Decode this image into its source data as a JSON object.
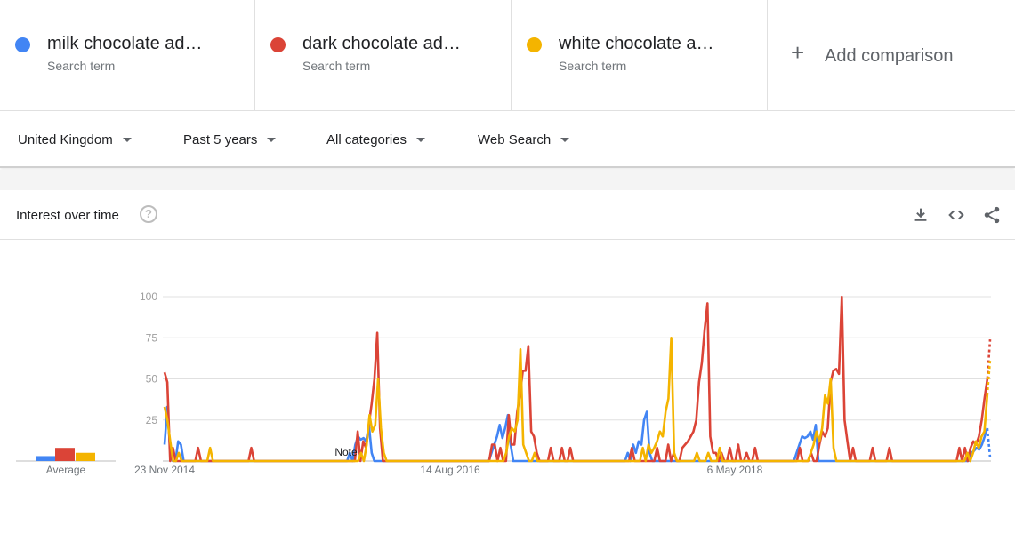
{
  "terms": [
    {
      "label": "milk chocolate ad…",
      "sub": "Search term",
      "color": "#4285f4"
    },
    {
      "label": "dark chocolate ad…",
      "sub": "Search term",
      "color": "#db4437"
    },
    {
      "label": "white chocolate a…",
      "sub": "Search term",
      "color": "#f4b400"
    }
  ],
  "add_comparison": {
    "icon": "+",
    "label": "Add comparison"
  },
  "filters": {
    "region": "United Kingdom",
    "time": "Past 5 years",
    "category": "All categories",
    "property": "Web Search"
  },
  "card": {
    "title": "Interest over time",
    "help": "?",
    "icons": [
      "download-icon",
      "embed-code-icon",
      "share-icon"
    ]
  },
  "chart_data": {
    "type": "line",
    "ylim": [
      0,
      100
    ],
    "yticks": [
      "100",
      "75",
      "50",
      "25"
    ],
    "x_labels": [
      "23 Nov 2014",
      "14 Aug 2016",
      "6 May 2018"
    ],
    "average_label": "Average",
    "note_label": "Note",
    "x_start": "2014-11-23",
    "x_step_weeks": 1,
    "averages": [
      3,
      8,
      5
    ],
    "partial_last_point": true,
    "series": [
      {
        "name": "milk chocolate ad…",
        "color": "#4285f4",
        "values": [
          10,
          33,
          8,
          0,
          0,
          12,
          10,
          0,
          0,
          0,
          0,
          0,
          0,
          0,
          0,
          0,
          0,
          0,
          0,
          0,
          0,
          0,
          0,
          0,
          0,
          0,
          0,
          0,
          0,
          0,
          0,
          0,
          0,
          0,
          0,
          0,
          0,
          0,
          0,
          0,
          0,
          0,
          0,
          0,
          0,
          0,
          0,
          0,
          0,
          0,
          0,
          0,
          0,
          0,
          0,
          0,
          0,
          0,
          0,
          0,
          0,
          0,
          0,
          0,
          0,
          0,
          0,
          0,
          5,
          0,
          10,
          15,
          13,
          14,
          12,
          22,
          5,
          0,
          0,
          0,
          0,
          0,
          0,
          0,
          0,
          0,
          0,
          0,
          0,
          0,
          0,
          0,
          0,
          0,
          0,
          0,
          0,
          0,
          0,
          0,
          0,
          0,
          0,
          0,
          0,
          0,
          0,
          0,
          0,
          0,
          0,
          0,
          0,
          0,
          0,
          0,
          0,
          0,
          0,
          0,
          5,
          10,
          15,
          22,
          14,
          20,
          28,
          10,
          0,
          0,
          0,
          0,
          0,
          0,
          0,
          0,
          0,
          0,
          0,
          0,
          0,
          0,
          0,
          0,
          0,
          0,
          0,
          0,
          0,
          0,
          0,
          0,
          0,
          0,
          0,
          0,
          0,
          0,
          0,
          0,
          0,
          0,
          0,
          0,
          0,
          0,
          0,
          0,
          0,
          0,
          5,
          0,
          10,
          5,
          12,
          10,
          25,
          30,
          5,
          0,
          0,
          0,
          0,
          0,
          0,
          0,
          0,
          0,
          0,
          0,
          0,
          0,
          0,
          0,
          0,
          0,
          0,
          0,
          0,
          0,
          0,
          0,
          0,
          0,
          0,
          0,
          0,
          0,
          0,
          0,
          0,
          0,
          0,
          0,
          0,
          0,
          0,
          0,
          0,
          0,
          0,
          0,
          0,
          0,
          0,
          0,
          0,
          0,
          0,
          0,
          0,
          0,
          5,
          10,
          15,
          14,
          15,
          18,
          13,
          22,
          0,
          0,
          0,
          0,
          0,
          0,
          0,
          0,
          0,
          0,
          0,
          0,
          0,
          0,
          0,
          0,
          0,
          0,
          0,
          0,
          0,
          0,
          0,
          0,
          0,
          0,
          0,
          0,
          0,
          0,
          0,
          0,
          0,
          0,
          0,
          0,
          0,
          0,
          0,
          0,
          0,
          0,
          0,
          0,
          0,
          0,
          0,
          0,
          0,
          0,
          0,
          0,
          0,
          0,
          0,
          0,
          5,
          6,
          8,
          7,
          10,
          15,
          20,
          2
        ]
      },
      {
        "name": "dark chocolate ad…",
        "color": "#db4437",
        "values": [
          54,
          48,
          0,
          8,
          0,
          0,
          0,
          0,
          0,
          0,
          0,
          0,
          8,
          0,
          0,
          0,
          0,
          0,
          0,
          0,
          0,
          0,
          0,
          0,
          0,
          0,
          0,
          0,
          0,
          0,
          0,
          8,
          0,
          0,
          0,
          0,
          0,
          0,
          0,
          0,
          0,
          0,
          0,
          0,
          0,
          0,
          0,
          0,
          0,
          0,
          0,
          0,
          0,
          0,
          0,
          0,
          0,
          0,
          0,
          0,
          0,
          0,
          0,
          0,
          0,
          0,
          0,
          0,
          0,
          18,
          0,
          12,
          8,
          22,
          35,
          50,
          78,
          20,
          0,
          0,
          0,
          0,
          0,
          0,
          0,
          0,
          0,
          0,
          0,
          0,
          0,
          0,
          0,
          0,
          0,
          0,
          0,
          0,
          0,
          0,
          0,
          0,
          0,
          0,
          0,
          0,
          0,
          0,
          0,
          0,
          0,
          0,
          0,
          0,
          0,
          0,
          0,
          10,
          10,
          0,
          8,
          0,
          0,
          28,
          10,
          10,
          30,
          40,
          55,
          55,
          70,
          18,
          15,
          5,
          0,
          0,
          0,
          0,
          8,
          0,
          0,
          0,
          8,
          0,
          0,
          8,
          0,
          0,
          0,
          0,
          0,
          0,
          0,
          0,
          0,
          0,
          0,
          0,
          0,
          0,
          0,
          0,
          0,
          0,
          0,
          0,
          0,
          8,
          0,
          0,
          0,
          0,
          0,
          0,
          0,
          0,
          8,
          0,
          0,
          0,
          10,
          0,
          5,
          0,
          0,
          8,
          10,
          12,
          15,
          18,
          25,
          48,
          60,
          80,
          96,
          15,
          5,
          5,
          0,
          5,
          0,
          0,
          8,
          0,
          0,
          10,
          0,
          0,
          5,
          0,
          0,
          8,
          0,
          0,
          0,
          0,
          0,
          0,
          0,
          0,
          0,
          0,
          0,
          0,
          0,
          0,
          0,
          8,
          0,
          0,
          0,
          5,
          0,
          0,
          10,
          18,
          15,
          20,
          48,
          55,
          56,
          53,
          100,
          25,
          12,
          0,
          8,
          0,
          0,
          0,
          0,
          0,
          0,
          8,
          0,
          0,
          0,
          0,
          0,
          8,
          0,
          0,
          0,
          0,
          0,
          0,
          0,
          0,
          0,
          0,
          0,
          0,
          0,
          0,
          0,
          0,
          0,
          0,
          0,
          0,
          0,
          0,
          0,
          0,
          8,
          0,
          8,
          0,
          8,
          12,
          10,
          15,
          25,
          38,
          50,
          74
        ]
      },
      {
        "name": "white chocolate a…",
        "color": "#f4b400",
        "values": [
          33,
          25,
          12,
          0,
          0,
          5,
          0,
          0,
          0,
          0,
          0,
          0,
          0,
          0,
          0,
          0,
          8,
          0,
          0,
          0,
          0,
          0,
          0,
          0,
          0,
          0,
          0,
          0,
          0,
          0,
          0,
          0,
          0,
          0,
          0,
          0,
          0,
          0,
          0,
          0,
          0,
          0,
          0,
          0,
          0,
          0,
          0,
          0,
          0,
          0,
          0,
          0,
          0,
          0,
          0,
          0,
          0,
          0,
          0,
          0,
          0,
          0,
          0,
          0,
          0,
          0,
          0,
          0,
          0,
          5,
          0,
          10,
          28,
          18,
          22,
          50,
          20,
          5,
          0,
          0,
          0,
          0,
          0,
          0,
          0,
          0,
          0,
          0,
          0,
          0,
          0,
          0,
          0,
          0,
          0,
          0,
          0,
          0,
          0,
          0,
          0,
          0,
          0,
          0,
          0,
          0,
          0,
          0,
          0,
          0,
          0,
          0,
          0,
          0,
          0,
          0,
          0,
          0,
          0,
          0,
          5,
          15,
          20,
          18,
          25,
          68,
          10,
          5,
          0,
          0,
          5,
          0,
          0,
          0,
          0,
          0,
          0,
          0,
          0,
          0,
          0,
          0,
          0,
          0,
          0,
          0,
          0,
          0,
          0,
          0,
          0,
          0,
          0,
          0,
          0,
          0,
          0,
          0,
          0,
          0,
          0,
          0,
          0,
          0,
          0,
          0,
          0,
          0,
          8,
          0,
          10,
          5,
          8,
          12,
          18,
          15,
          30,
          38,
          75,
          5,
          0,
          0,
          0,
          0,
          0,
          0,
          0,
          5,
          0,
          0,
          0,
          5,
          0,
          0,
          0,
          8,
          0,
          0,
          0,
          0,
          0,
          0,
          0,
          0,
          0,
          0,
          0,
          0,
          0,
          0,
          0,
          0,
          0,
          0,
          0,
          0,
          0,
          0,
          0,
          0,
          0,
          0,
          0,
          0,
          0,
          0,
          0,
          5,
          10,
          18,
          12,
          20,
          40,
          35,
          50,
          8,
          0,
          0,
          0,
          0,
          0,
          0,
          0,
          0,
          0,
          0,
          0,
          0,
          0,
          0,
          0,
          0,
          0,
          0,
          0,
          0,
          0,
          0,
          0,
          0,
          0,
          0,
          0,
          0,
          0,
          0,
          0,
          0,
          0,
          0,
          0,
          0,
          0,
          0,
          0,
          0,
          0,
          0,
          0,
          0,
          0,
          0,
          5,
          0,
          5,
          12,
          8,
          15,
          18,
          40,
          62
        ]
      }
    ]
  }
}
